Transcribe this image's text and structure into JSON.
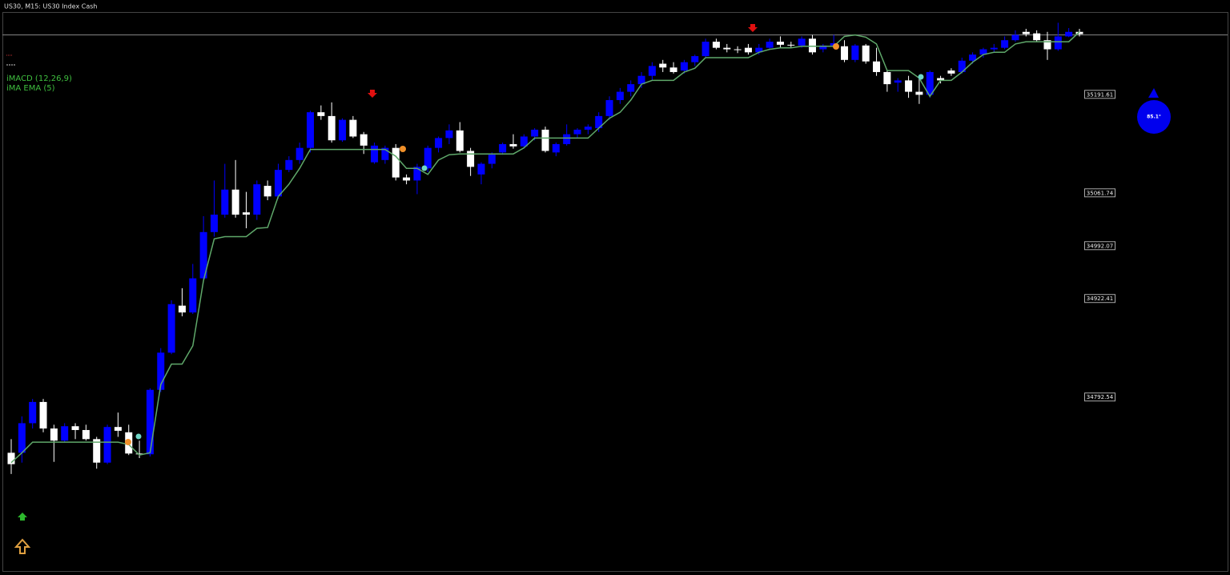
{
  "chart_data": {
    "type": "candlestick",
    "title": "US30, M15: US30 Index Cash",
    "indicators": [
      "iMACD (12,26,9)",
      "iMA EMA (5)"
    ],
    "up_color": "#0000ff",
    "down_color": "#ffffff",
    "open": [
      34719,
      34719,
      34758,
      34786,
      34751,
      34735,
      34754,
      34749,
      34737,
      34706,
      34753,
      34746,
      34718,
      34717,
      34802,
      34851,
      34913,
      34904,
      34949,
      35010,
      35033,
      35066,
      35036,
      35033,
      35071,
      35057,
      35092,
      35105,
      35121,
      35168,
      35163,
      35131,
      35158,
      35139,
      35102,
      35105,
      35121,
      35082,
      35078,
      35094,
      35121,
      35134,
      35144,
      35117,
      35086,
      35100,
      35115,
      35126,
      35123,
      35136,
      35145,
      35115,
      35126,
      35139,
      35145,
      35147,
      35163,
      35184,
      35195,
      35205,
      35216,
      35232,
      35227,
      35223,
      35234,
      35242,
      35261,
      35253,
      35251,
      35253,
      35247,
      35253,
      35261,
      35257,
      35256,
      35265,
      35251,
      35256,
      35255,
      35237,
      35256,
      35235,
      35221,
      35207,
      35210,
      35195,
      35191,
      35213,
      35223,
      35221,
      35236,
      35244,
      35251,
      35253,
      35263,
      35274,
      35272,
      35263,
      35251,
      35268,
      35274
    ],
    "high": [
      34737,
      34767,
      34790,
      34790,
      34756,
      34758,
      34758,
      34756,
      34740,
      34756,
      34772,
      34756,
      34735,
      34804,
      34857,
      34920,
      34936,
      34968,
      35031,
      35078,
      35100,
      35105,
      35063,
      35078,
      35078,
      35100,
      35110,
      35128,
      35170,
      35177,
      35181,
      35160,
      35163,
      35142,
      35128,
      35124,
      35126,
      35086,
      35100,
      35124,
      35136,
      35152,
      35155,
      35121,
      35102,
      35115,
      35128,
      35139,
      35139,
      35147,
      35149,
      35128,
      35152,
      35147,
      35152,
      35168,
      35189,
      35200,
      35210,
      35221,
      35234,
      35237,
      35234,
      35237,
      35244,
      35265,
      35265,
      35258,
      35255,
      35258,
      35258,
      35265,
      35268,
      35261,
      35268,
      35270,
      35258,
      35270,
      35263,
      35258,
      35258,
      35253,
      35223,
      35213,
      35216,
      35216,
      35223,
      35216,
      35226,
      35240,
      35247,
      35253,
      35258,
      35268,
      35276,
      35278,
      35276,
      35274,
      35286,
      35279,
      35278
    ],
    "low": [
      34691,
      34706,
      34751,
      34746,
      34707,
      34733,
      34737,
      34735,
      34698,
      34704,
      34740,
      34716,
      34712,
      34714,
      34799,
      34849,
      34899,
      34902,
      34946,
      35004,
      35029,
      35029,
      35015,
      35026,
      35052,
      35054,
      35089,
      35100,
      35115,
      35158,
      35128,
      35129,
      35134,
      35113,
      35100,
      35100,
      35078,
      35073,
      35060,
      35089,
      35115,
      35126,
      35115,
      35084,
      35073,
      35094,
      35112,
      35120,
      35120,
      35131,
      35115,
      35110,
      35124,
      35134,
      35139,
      35142,
      35158,
      35179,
      35189,
      35200,
      35210,
      35221,
      35219,
      35219,
      35229,
      35240,
      35251,
      35247,
      35246,
      35244,
      35244,
      35251,
      35253,
      35253,
      35253,
      35244,
      35247,
      35253,
      35234,
      35234,
      35232,
      35216,
      35195,
      35195,
      35187,
      35179,
      35187,
      35206,
      35216,
      35219,
      35232,
      35240,
      35247,
      35251,
      35261,
      35268,
      35261,
      35237,
      35249,
      35267,
      35268
    ],
    "close": [
      34704,
      34758,
      34786,
      34751,
      34735,
      34754,
      34749,
      34737,
      34706,
      34753,
      34748,
      34718,
      34717,
      34802,
      34851,
      34915,
      34904,
      34949,
      35010,
      35033,
      35066,
      35033,
      35033,
      35073,
      35057,
      35092,
      35105,
      35121,
      35168,
      35163,
      35131,
      35158,
      35136,
      35124,
      35124,
      35121,
      35082,
      35078,
      35096,
      35121,
      35134,
      35144,
      35117,
      35096,
      35100,
      35112,
      35126,
      35123,
      35136,
      35145,
      35117,
      35126,
      35139,
      35145,
      35149,
      35163,
      35184,
      35195,
      35205,
      35216,
      35229,
      35227,
      35221,
      35234,
      35242,
      35261,
      35253,
      35251,
      35251,
      35247,
      35253,
      35261,
      35257,
      35256,
      35265,
      35247,
      35256,
      35259,
      35237,
      35256,
      35235,
      35221,
      35205,
      35210,
      35195,
      35191,
      35221,
      35210,
      35219,
      35236,
      35244,
      35251,
      35253,
      35263,
      35270,
      35271,
      35263,
      35251,
      35268,
      35274,
      35271
    ],
    "trend_line": {
      "color": "#5fa86a",
      "values": [
        34706,
        34719,
        34733,
        34733,
        34733,
        34733,
        34733,
        34733,
        34733,
        34733,
        34733,
        34730,
        34716,
        34719,
        34809,
        34836,
        34836,
        34860,
        34946,
        35001,
        35004,
        35004,
        35004,
        35015,
        35016,
        35057,
        35073,
        35094,
        35119,
        35119,
        35119,
        35119,
        35119,
        35119,
        35119,
        35119,
        35110,
        35094,
        35094,
        35086,
        35105,
        35112,
        35113,
        35113,
        35113,
        35113,
        35113,
        35113,
        35121,
        35134,
        35134,
        35134,
        35134,
        35134,
        35134,
        35147,
        35160,
        35168,
        35184,
        35205,
        35210,
        35210,
        35210,
        35221,
        35226,
        35240,
        35240,
        35240,
        35240,
        35240,
        35247,
        35251,
        35253,
        35253,
        35255,
        35255,
        35255,
        35255,
        35268,
        35270,
        35267,
        35258,
        35223,
        35223,
        35223,
        35213,
        35189,
        35210,
        35210,
        35221,
        35234,
        35244,
        35247,
        35247,
        35258,
        35261,
        35261,
        35261,
        35261,
        35261,
        35274
      ]
    },
    "current_price": 35270,
    "ylim": [
      34561,
      35316
    ],
    "yticks": [
      35191.61,
      35061.74,
      34992.07,
      34922.41,
      34792.54
    ],
    "badge": "85.1°"
  }
}
